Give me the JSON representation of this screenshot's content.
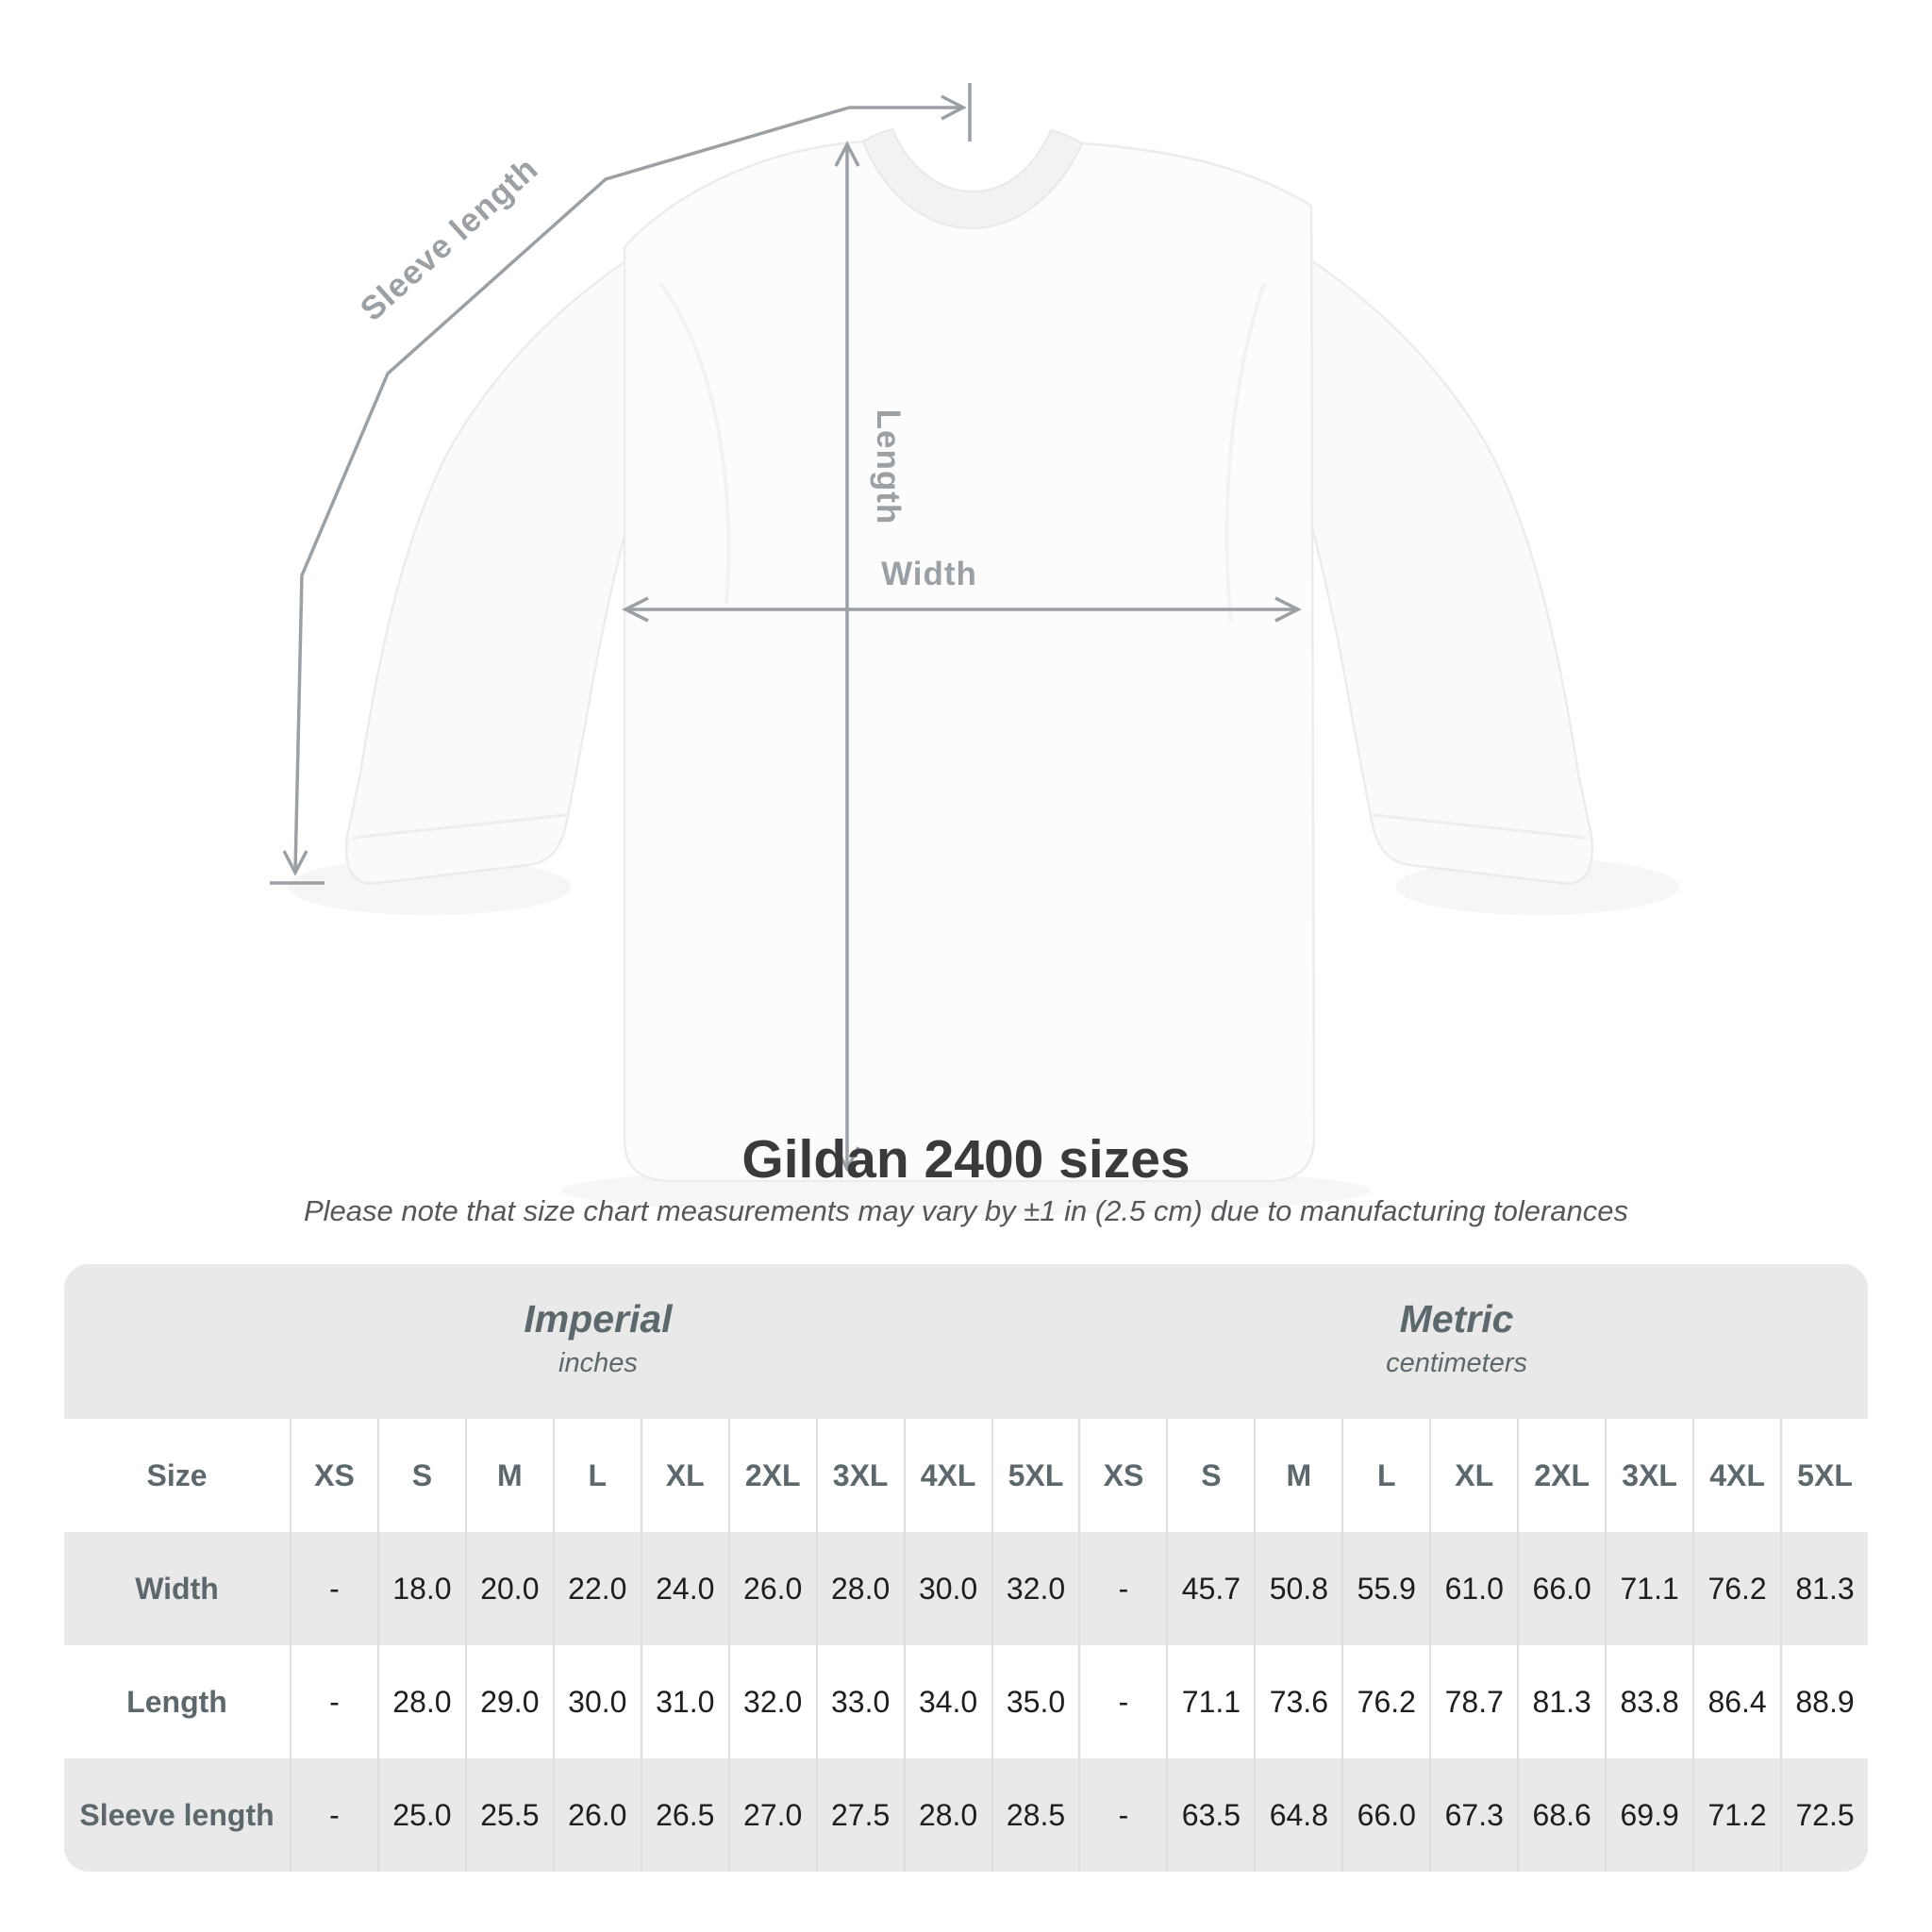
{
  "diagram": {
    "labels": {
      "sleeve_length": "Sleeve length",
      "length": "Length",
      "width": "Width"
    },
    "annotation_color": "#9ba0a5",
    "shirt_color": "#fcfcfd"
  },
  "title": "Gildan 2400 sizes",
  "subtitle": "Please note that size chart measurements may vary by ±1 in (2.5 cm) due to manufacturing tolerances",
  "table": {
    "unit_groups": [
      {
        "label": "Imperial",
        "sublabel": "inches"
      },
      {
        "label": "Metric",
        "sublabel": "centimeters"
      }
    ],
    "size_column_header": "Size",
    "size_labels": [
      "XS",
      "S",
      "M",
      "L",
      "XL",
      "2XL",
      "3XL",
      "4XL",
      "5XL",
      "XS",
      "S",
      "M",
      "L",
      "XL",
      "2XL",
      "3XL",
      "4XL",
      "5XL"
    ],
    "rows": [
      {
        "label": "Width",
        "values": [
          "-",
          "18.0",
          "20.0",
          "22.0",
          "24.0",
          "26.0",
          "28.0",
          "30.0",
          "32.0",
          "-",
          "45.7",
          "50.8",
          "55.9",
          "61.0",
          "66.0",
          "71.1",
          "76.2",
          "81.3"
        ]
      },
      {
        "label": "Length",
        "values": [
          "-",
          "28.0",
          "29.0",
          "30.0",
          "31.0",
          "32.0",
          "33.0",
          "34.0",
          "35.0",
          "-",
          "71.1",
          "73.6",
          "76.2",
          "78.7",
          "81.3",
          "83.8",
          "86.4",
          "88.9"
        ]
      },
      {
        "label": "Sleeve length",
        "values": [
          "-",
          "25.0",
          "25.5",
          "26.0",
          "26.5",
          "27.0",
          "27.5",
          "28.0",
          "28.5",
          "-",
          "63.5",
          "64.8",
          "66.0",
          "67.3",
          "68.6",
          "69.9",
          "71.2",
          "72.5"
        ]
      }
    ]
  },
  "chart_data": {
    "type": "table",
    "title": "Gildan 2400 sizes",
    "note": "Please note that size chart measurements may vary by ±1 in (2.5 cm) due to manufacturing tolerances",
    "unit_groups": [
      "Imperial (inches)",
      "Metric (centimeters)"
    ],
    "columns": [
      "XS",
      "S",
      "M",
      "L",
      "XL",
      "2XL",
      "3XL",
      "4XL",
      "5XL"
    ],
    "imperial": {
      "Width": [
        null,
        18.0,
        20.0,
        22.0,
        24.0,
        26.0,
        28.0,
        30.0,
        32.0
      ],
      "Length": [
        null,
        28.0,
        29.0,
        30.0,
        31.0,
        32.0,
        33.0,
        34.0,
        35.0
      ],
      "Sleeve length": [
        null,
        25.0,
        25.5,
        26.0,
        26.5,
        27.0,
        27.5,
        28.0,
        28.5
      ]
    },
    "metric": {
      "Width": [
        null,
        45.7,
        50.8,
        55.9,
        61.0,
        66.0,
        71.1,
        76.2,
        81.3
      ],
      "Length": [
        null,
        71.1,
        73.6,
        76.2,
        78.7,
        81.3,
        83.8,
        86.4,
        88.9
      ],
      "Sleeve length": [
        null,
        63.5,
        64.8,
        66.0,
        67.3,
        68.6,
        69.9,
        71.2,
        72.5
      ]
    }
  },
  "colors": {
    "table_band": "#e9e9ea",
    "table_white": "#ffffff",
    "separator": "#dededf",
    "header_text": "#5d686d",
    "value_text": "#1d1e1f",
    "title_text": "#383a3c",
    "annotation": "#9ba0a5"
  }
}
